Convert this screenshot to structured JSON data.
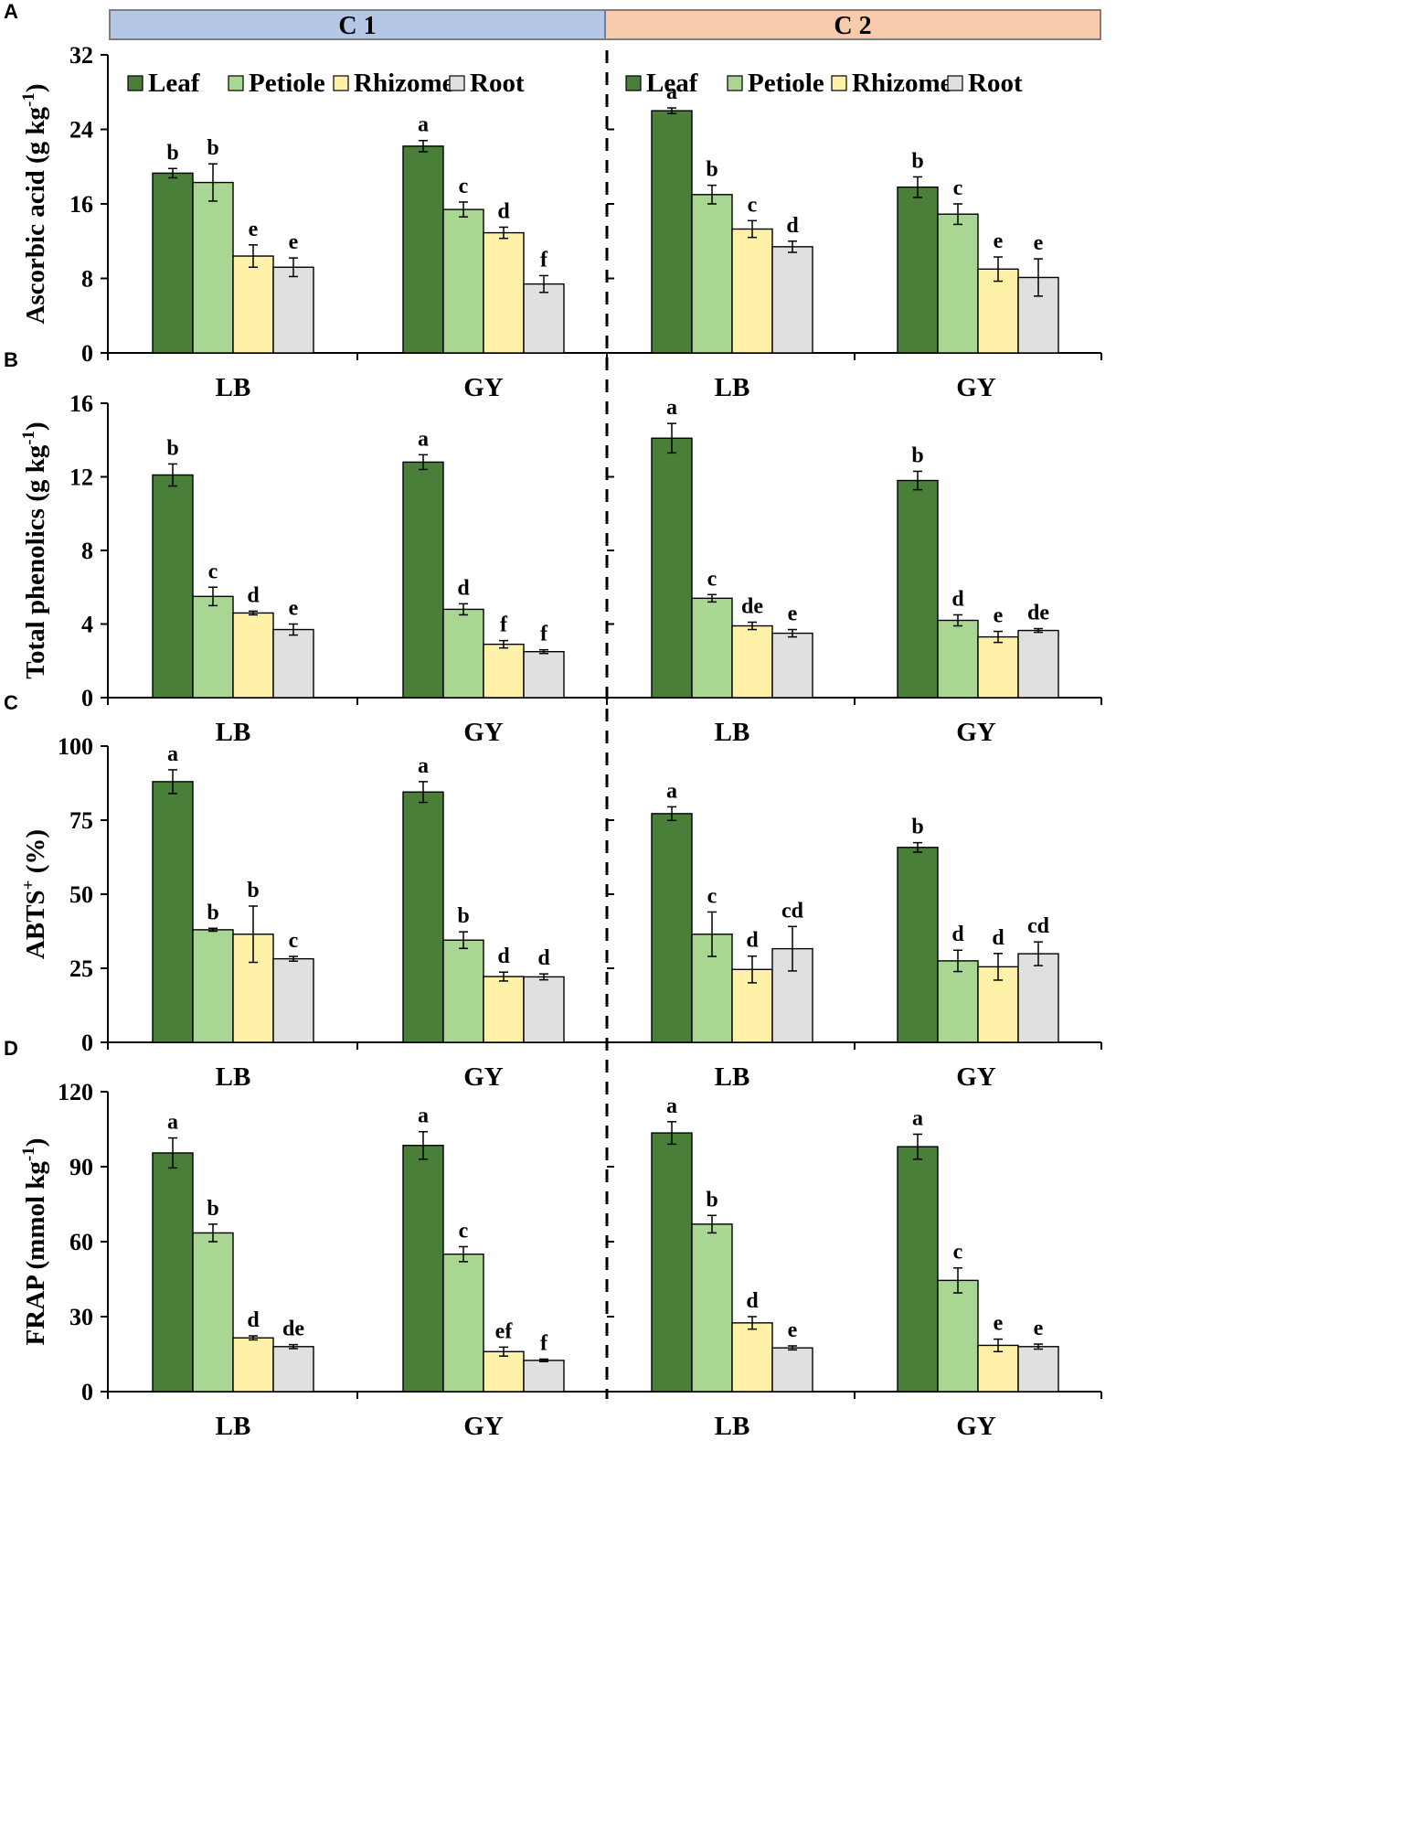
{
  "colors": {
    "Leaf": "#4a7f39",
    "Petiole": "#a9d692",
    "Rhizome": "#fff2a8",
    "Root": "#e0e0e0",
    "c1_header": "#b4c7e7",
    "c2_header": "#f8cbad"
  },
  "conditions": [
    "C 1",
    "C 2"
  ],
  "chart_data": [
    {
      "type": "bar",
      "panel": "A",
      "ylabel": "Ascorbic acid (g kg-1)",
      "ylabel_main": "Ascorbic acid (g kg",
      "ylabel_sup": "-1",
      "ylabel_tail": ")",
      "ylim": [
        0,
        32
      ],
      "yticks": [
        0,
        8,
        16,
        24,
        32
      ],
      "categories": [
        "LB",
        "GY"
      ],
      "legend": [
        "Leaf",
        "Petiole",
        "Rhizome",
        "Root"
      ],
      "legend_position": "top",
      "conditions": [
        {
          "name": "C 1",
          "groups": [
            {
              "category": "LB",
              "values": [
                19.3,
                18.3,
                10.4,
                9.2
              ],
              "errors": [
                0.5,
                2.0,
                1.2,
                1.0
              ],
              "letters": [
                "b",
                "b",
                "e",
                "e"
              ]
            },
            {
              "category": "GY",
              "values": [
                22.2,
                15.4,
                12.9,
                7.4
              ],
              "errors": [
                0.6,
                0.8,
                0.6,
                0.9
              ],
              "letters": [
                "a",
                "c",
                "d",
                "f"
              ]
            }
          ]
        },
        {
          "name": "C 2",
          "groups": [
            {
              "category": "LB",
              "values": [
                26.0,
                17.0,
                13.3,
                11.4
              ],
              "errors": [
                0.3,
                1.0,
                0.9,
                0.6
              ],
              "letters": [
                "a",
                "b",
                "c",
                "d"
              ]
            },
            {
              "category": "GY",
              "values": [
                17.8,
                14.9,
                9.0,
                8.1
              ],
              "errors": [
                1.1,
                1.1,
                1.3,
                2.0
              ],
              "letters": [
                "b",
                "c",
                "e",
                "e"
              ]
            }
          ]
        }
      ]
    },
    {
      "type": "bar",
      "panel": "B",
      "ylabel": "Total phenolics (g kg-1)",
      "ylabel_main": "Total phenolics (g kg",
      "ylabel_sup": "-1",
      "ylabel_tail": ")",
      "ylim": [
        0,
        16
      ],
      "yticks": [
        0,
        4,
        8,
        12,
        16
      ],
      "categories": [
        "LB",
        "GY"
      ],
      "legend": [
        "Leaf",
        "Petiole",
        "Rhizome",
        "Root"
      ],
      "conditions": [
        {
          "name": "C 1",
          "groups": [
            {
              "category": "LB",
              "values": [
                12.1,
                5.5,
                4.6,
                3.7
              ],
              "errors": [
                0.6,
                0.5,
                0.1,
                0.3
              ],
              "letters": [
                "b",
                "c",
                "d",
                "e"
              ]
            },
            {
              "category": "GY",
              "values": [
                12.8,
                4.8,
                2.9,
                2.5
              ],
              "errors": [
                0.4,
                0.3,
                0.2,
                0.1
              ],
              "letters": [
                "a",
                "d",
                "f",
                "f"
              ]
            }
          ]
        },
        {
          "name": "C 2",
          "groups": [
            {
              "category": "LB",
              "values": [
                14.1,
                5.4,
                3.9,
                3.5
              ],
              "errors": [
                0.8,
                0.2,
                0.2,
                0.2
              ],
              "letters": [
                "a",
                "c",
                "de",
                "e"
              ]
            },
            {
              "category": "GY",
              "values": [
                11.8,
                4.2,
                3.3,
                3.65
              ],
              "errors": [
                0.5,
                0.3,
                0.3,
                0.1
              ],
              "letters": [
                "b",
                "d",
                "e",
                "de"
              ]
            }
          ]
        }
      ]
    },
    {
      "type": "bar",
      "panel": "C",
      "ylabel": "ABTS+ (%)",
      "ylabel_main": "ABTS",
      "ylabel_sup": "+",
      "ylabel_tail": " (%)",
      "ylim": [
        0,
        100
      ],
      "yticks": [
        0,
        25,
        50,
        75,
        100
      ],
      "categories": [
        "LB",
        "GY"
      ],
      "legend": [
        "Leaf",
        "Petiole",
        "Rhizome",
        "Root"
      ],
      "conditions": [
        {
          "name": "C 1",
          "groups": [
            {
              "category": "LB",
              "values": [
                88,
                38,
                36.5,
                28.2
              ],
              "errors": [
                4,
                0.5,
                9.5,
                0.8
              ],
              "letters": [
                "a",
                "b",
                "b",
                "c"
              ]
            },
            {
              "category": "GY",
              "values": [
                84.5,
                34.5,
                22.2,
                22.1
              ],
              "errors": [
                3.5,
                2.8,
                1.5,
                1.0
              ],
              "letters": [
                "a",
                "b",
                "d",
                "d"
              ]
            }
          ]
        },
        {
          "name": "C 2",
          "groups": [
            {
              "category": "LB",
              "values": [
                77.2,
                36.5,
                24.6,
                31.6
              ],
              "errors": [
                2.3,
                7.5,
                4.5,
                7.5
              ],
              "letters": [
                "a",
                "c",
                "d",
                "cd"
              ]
            },
            {
              "category": "GY",
              "values": [
                65.8,
                27.5,
                25.5,
                29.9
              ],
              "errors": [
                1.6,
                3.6,
                4.5,
                4.0
              ],
              "letters": [
                "b",
                "d",
                "d",
                "cd"
              ]
            }
          ]
        }
      ]
    },
    {
      "type": "bar",
      "panel": "D",
      "ylabel": "FRAP (mmol kg-1)",
      "ylabel_main": "FRAP (mmol kg",
      "ylabel_sup": "-1",
      "ylabel_tail": ")",
      "ylim": [
        0,
        120
      ],
      "yticks": [
        0,
        30,
        60,
        90,
        120
      ],
      "categories": [
        "LB",
        "GY"
      ],
      "legend": [
        "Leaf",
        "Petiole",
        "Rhizome",
        "Root"
      ],
      "conditions": [
        {
          "name": "C 1",
          "groups": [
            {
              "category": "LB",
              "values": [
                95.5,
                63.5,
                21.5,
                18
              ],
              "errors": [
                6,
                3.5,
                0.8,
                0.8
              ],
              "letters": [
                "a",
                "b",
                "d",
                "de"
              ]
            },
            {
              "category": "GY",
              "values": [
                98.5,
                55,
                16,
                12.5
              ],
              "errors": [
                5.5,
                3,
                1.8,
                0.5
              ],
              "letters": [
                "a",
                "c",
                "ef",
                "f"
              ]
            }
          ]
        },
        {
          "name": "C 2",
          "groups": [
            {
              "category": "LB",
              "values": [
                103.5,
                67,
                27.5,
                17.5
              ],
              "errors": [
                4.5,
                3.5,
                2.5,
                0.8
              ],
              "letters": [
                "a",
                "b",
                "d",
                "e"
              ]
            },
            {
              "category": "GY",
              "values": [
                98,
                44.5,
                18.5,
                18
              ],
              "errors": [
                5,
                5,
                2.5,
                1
              ],
              "letters": [
                "a",
                "c",
                "e",
                "e"
              ]
            }
          ]
        }
      ]
    }
  ]
}
